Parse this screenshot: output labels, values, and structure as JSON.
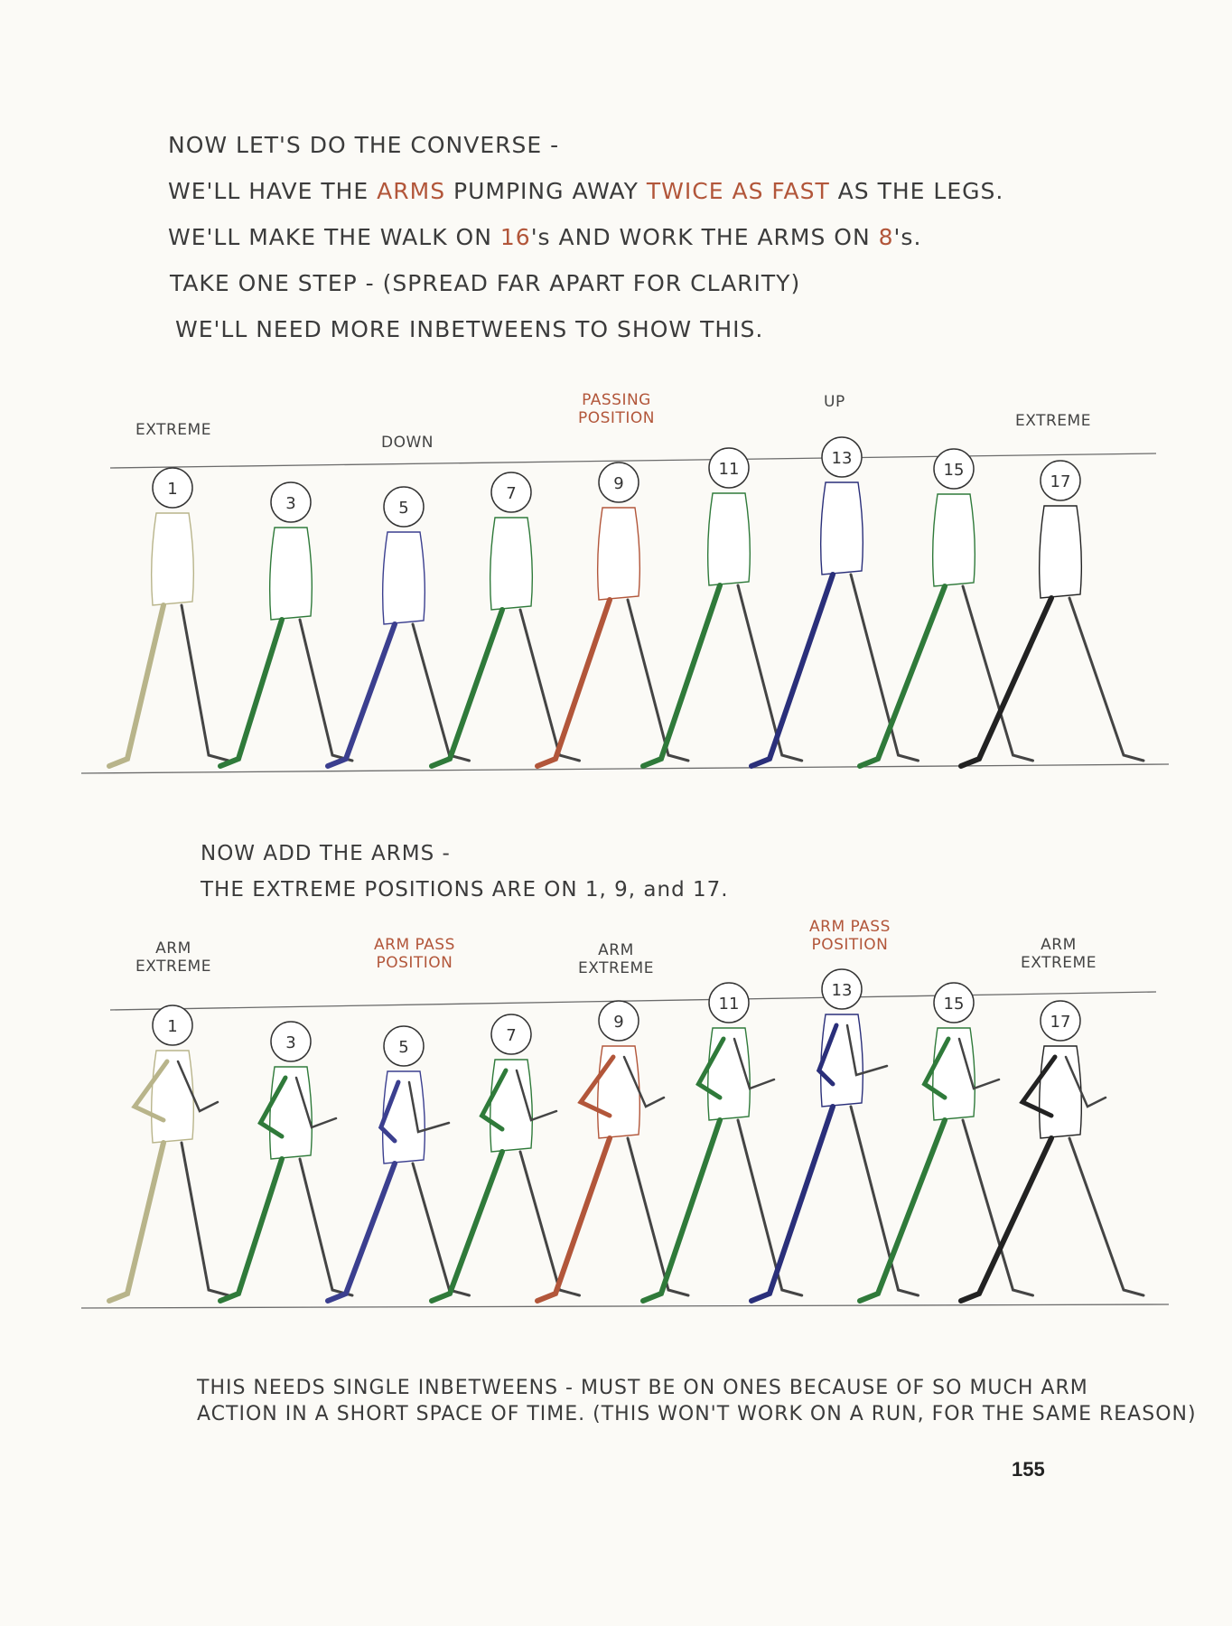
{
  "intro": {
    "line1": "NOW LET'S DO THE CONVERSE -",
    "line2": {
      "a": "WE'LL HAVE THE ",
      "b": "ARMS",
      "c": " PUMPING AWAY ",
      "d": "TWICE AS FAST",
      "e": " AS THE LEGS."
    },
    "line3": {
      "a": "WE'LL MAKE THE WALK ON ",
      "b": "16",
      "c": "'s  AND WORK THE ARMS ON ",
      "d": "8",
      "e": "'s."
    },
    "line4": "TAKE ONE STEP - (SPREAD FAR APART FOR CLARITY)",
    "line5": "WE'LL NEED MORE   INBETWEENS TO SHOW THIS."
  },
  "diagram1": {
    "labels": {
      "extreme_left": "EXTREME",
      "down": "DOWN",
      "passing": "PASSING\nPOSITION",
      "up": "UP",
      "extreme_right": "EXTREME"
    },
    "frames": [
      "1",
      "3",
      "5",
      "7",
      "9",
      "11",
      "13",
      "15",
      "17"
    ]
  },
  "middle": {
    "line1": "NOW ADD THE ARMS -",
    "line2": "THE EXTREME POSITIONS ARE ON 1, 9, and 17."
  },
  "diagram2": {
    "labels": {
      "arm_extreme_1": "ARM\nEXTREME",
      "arm_pass_1": "ARM PASS\nPOSITION",
      "arm_extreme_2": "ARM\nEXTREME",
      "arm_pass_2": "ARM PASS\nPOSITION",
      "arm_extreme_3": "ARM\nEXTREME"
    },
    "frames": [
      "1",
      "3",
      "5",
      "7",
      "9",
      "11",
      "13",
      "15",
      "17"
    ]
  },
  "footer": {
    "line1": "THIS NEEDS SINGLE INBETWEENS - MUST BE ON ONES  BECAUSE OF SO MUCH ARM",
    "line2": "ACTION IN A SHORT SPACE OF TIME. (THIS WON'T WORK ON A RUN, FOR THE SAME REASON)"
  },
  "page_number": "155",
  "colors": {
    "frame_colors": [
      "#b8b48a",
      "#2f7a3a",
      "#3b3f8f",
      "#2f7a3a",
      "#b2563a",
      "#2f7a3a",
      "#2a2f7a",
      "#2f7a3a",
      "#222222"
    ],
    "accent_red": "#b2563a"
  }
}
